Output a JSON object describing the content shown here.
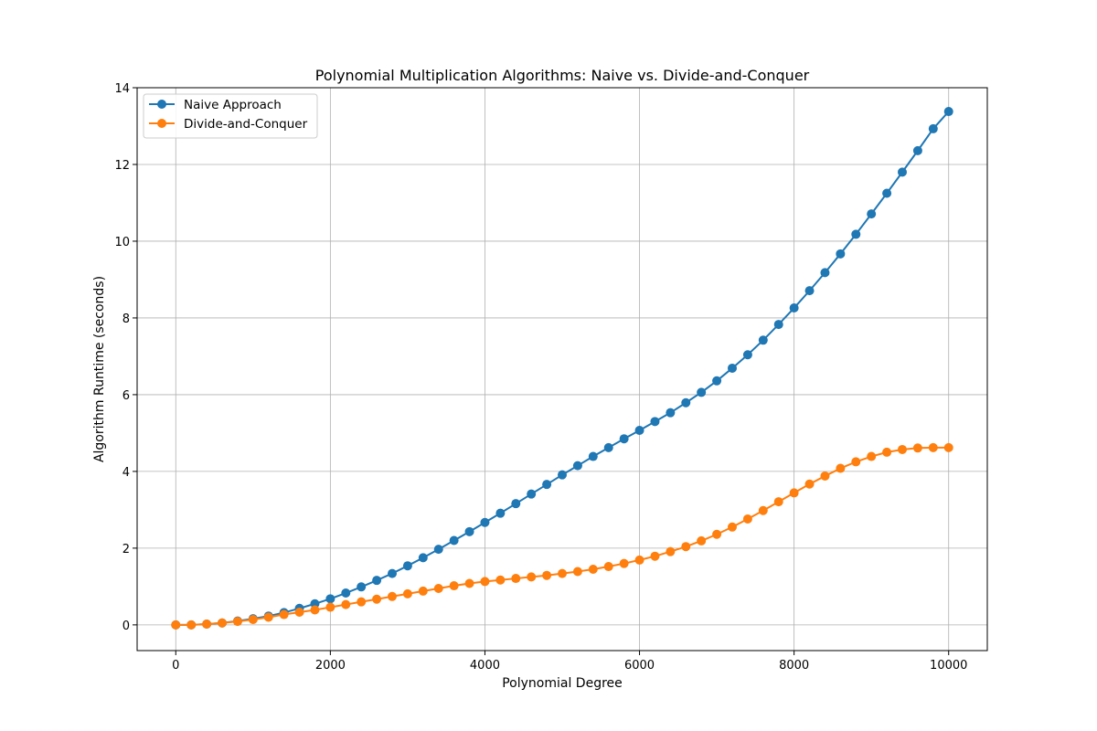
{
  "chart_data": {
    "type": "line",
    "title": "Polynomial Multiplication Algorithms: Naive vs. Divide-and-Conquer",
    "xlabel": "Polynomial Degree",
    "ylabel": "Algorithm Runtime (seconds)",
    "xlim": [
      -500,
      10500
    ],
    "ylim": [
      -0.67,
      14.0
    ],
    "xticks": [
      0,
      2000,
      4000,
      6000,
      8000,
      10000
    ],
    "yticks": [
      0,
      2,
      4,
      6,
      8,
      10,
      12,
      14
    ],
    "grid": true,
    "legend_position": "top-left",
    "markers": true,
    "x": [
      0,
      200,
      400,
      600,
      800,
      1000,
      1200,
      1400,
      1600,
      1800,
      2000,
      2200,
      2400,
      2600,
      2800,
      3000,
      3200,
      3400,
      3600,
      3800,
      4000,
      4200,
      4400,
      4600,
      4800,
      5000,
      5200,
      5400,
      5600,
      5800,
      6000,
      6200,
      6400,
      6600,
      6800,
      7000,
      7200,
      7400,
      7600,
      7800,
      8000,
      8200,
      8400,
      8600,
      8800,
      9000,
      9200,
      9400,
      9600,
      9800,
      10000
    ],
    "series": [
      {
        "name": "Naive Approach",
        "color": "#1f77b4",
        "values": [
          0.0,
          0.0,
          0.02,
          0.05,
          0.1,
          0.16,
          0.23,
          0.32,
          0.43,
          0.55,
          0.68,
          0.83,
          0.99,
          1.16,
          1.34,
          1.54,
          1.75,
          1.97,
          2.2,
          2.43,
          2.67,
          2.91,
          3.16,
          3.41,
          3.66,
          3.91,
          4.15,
          4.39,
          4.62,
          4.85,
          5.07,
          5.3,
          5.53,
          5.79,
          6.06,
          6.36,
          6.69,
          7.04,
          7.42,
          7.83,
          8.26,
          8.71,
          9.18,
          9.67,
          10.18,
          10.71,
          11.25,
          11.8,
          12.36,
          12.93,
          13.38
        ]
      },
      {
        "name": "Divide-and-Conquer",
        "color": "#ff7f0e",
        "values": [
          0.0,
          0.0,
          0.02,
          0.05,
          0.09,
          0.14,
          0.2,
          0.27,
          0.33,
          0.39,
          0.46,
          0.53,
          0.6,
          0.67,
          0.74,
          0.81,
          0.88,
          0.95,
          1.02,
          1.08,
          1.13,
          1.17,
          1.21,
          1.25,
          1.29,
          1.34,
          1.39,
          1.45,
          1.52,
          1.6,
          1.69,
          1.79,
          1.91,
          2.04,
          2.19,
          2.36,
          2.55,
          2.76,
          2.98,
          3.21,
          3.44,
          3.67,
          3.88,
          4.08,
          4.25,
          4.39,
          4.5,
          4.57,
          4.61,
          4.62,
          4.62
        ]
      }
    ]
  }
}
